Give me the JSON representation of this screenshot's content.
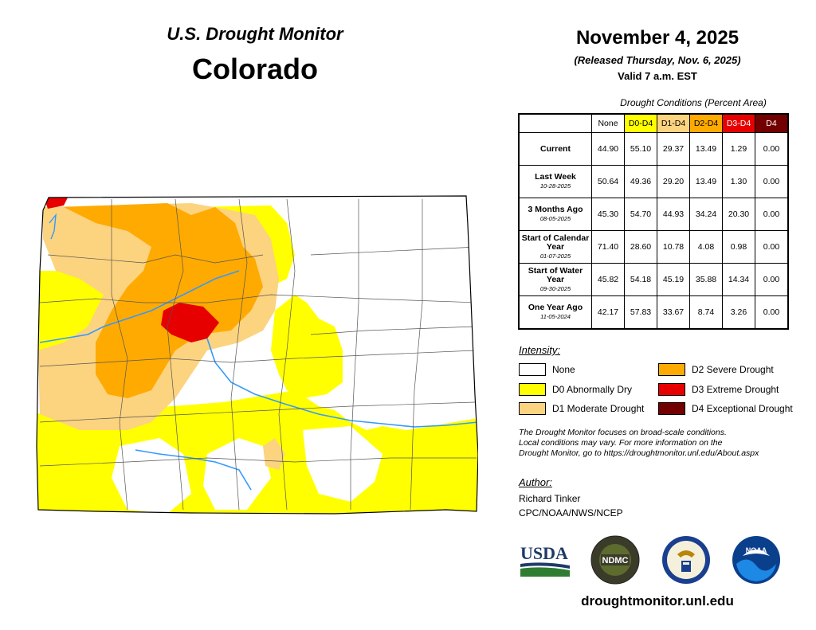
{
  "header": {
    "product": "U.S. Drought Monitor",
    "state": "Colorado",
    "date": "November 4, 2025",
    "released": "(Released Thursday, Nov. 6, 2025)",
    "valid": "Valid 7 a.m. EST"
  },
  "table": {
    "title": "Drought Conditions (Percent Area)",
    "columns": [
      "None",
      "D0-D4",
      "D1-D4",
      "D2-D4",
      "D3-D4",
      "D4"
    ],
    "column_colors": [
      "#ffffff",
      "#ffff00",
      "#fcd37f",
      "#ffaa00",
      "#e60000",
      "#730000"
    ],
    "rows": [
      {
        "label": "Current",
        "sub": "",
        "values": [
          "44.90",
          "55.10",
          "29.37",
          "13.49",
          "1.29",
          "0.00"
        ]
      },
      {
        "label": "Last Week",
        "sub": "10-28-2025",
        "values": [
          "50.64",
          "49.36",
          "29.20",
          "13.49",
          "1.30",
          "0.00"
        ]
      },
      {
        "label": "3 Months Ago",
        "sub": "08-05-2025",
        "values": [
          "45.30",
          "54.70",
          "44.93",
          "34.24",
          "20.30",
          "0.00"
        ]
      },
      {
        "label": "Start of Calendar Year",
        "sub": "01-07-2025",
        "values": [
          "71.40",
          "28.60",
          "10.78",
          "4.08",
          "0.98",
          "0.00"
        ]
      },
      {
        "label": "Start of Water Year",
        "sub": "09-30-2025",
        "values": [
          "45.82",
          "54.18",
          "45.19",
          "35.88",
          "14.34",
          "0.00"
        ]
      },
      {
        "label": "One Year Ago",
        "sub": "11-05-2024",
        "values": [
          "42.17",
          "57.83",
          "33.67",
          "8.74",
          "3.26",
          "0.00"
        ]
      }
    ]
  },
  "legend": {
    "title": "Intensity:",
    "items": [
      {
        "label": "None",
        "color": "#ffffff"
      },
      {
        "label": "D0 Abnormally Dry",
        "color": "#ffff00"
      },
      {
        "label": "D1 Moderate Drought",
        "color": "#fcd37f"
      },
      {
        "label": "D2 Severe Drought",
        "color": "#ffaa00"
      },
      {
        "label": "D3 Extreme Drought",
        "color": "#e60000"
      },
      {
        "label": "D4 Exceptional Drought",
        "color": "#730000"
      }
    ]
  },
  "disclaimer": {
    "line1": "The Drought Monitor focuses on broad-scale conditions.",
    "line2": "Local conditions may vary. For more information on the",
    "line3": "Drought Monitor, go to https://droughtmonitor.unl.edu/About.aspx"
  },
  "author": {
    "title": "Author:",
    "name": "Richard Tinker",
    "org": "CPC/NOAA/NWS/NCEP"
  },
  "logos": {
    "usda": "USDA",
    "ndmc": "NDMC",
    "noaa": "NOAA"
  },
  "website": "droughtmonitor.unl.edu"
}
